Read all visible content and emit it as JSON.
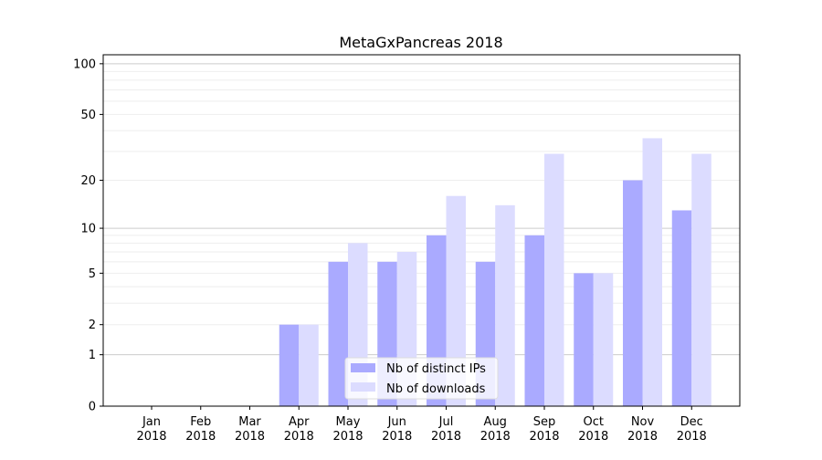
{
  "chart_data": {
    "type": "bar",
    "title": "MetaGxPancreas 2018",
    "xlabel": "",
    "ylabel": "",
    "yscale": "log(1+y)",
    "ylim": [
      0,
      113
    ],
    "yticks": [
      0,
      1,
      2,
      5,
      10,
      20,
      50,
      100
    ],
    "categories": [
      "Jan\n2018",
      "Feb\n2018",
      "Mar\n2018",
      "Apr\n2018",
      "May\n2018",
      "Jun\n2018",
      "Jul\n2018",
      "Aug\n2018",
      "Sep\n2018",
      "Oct\n2018",
      "Nov\n2018",
      "Dec\n2018"
    ],
    "series": [
      {
        "name": "Nb of distinct IPs",
        "color": "#aaaaff",
        "values": [
          0,
          0,
          0,
          2,
          6,
          6,
          9,
          6,
          9,
          5,
          20,
          13
        ]
      },
      {
        "name": "Nb of downloads",
        "color": "#dcdcff",
        "values": [
          0,
          0,
          0,
          2,
          8,
          7,
          16,
          14,
          29,
          5,
          36,
          29
        ]
      }
    ],
    "grid": true,
    "legend": "lower-center"
  }
}
